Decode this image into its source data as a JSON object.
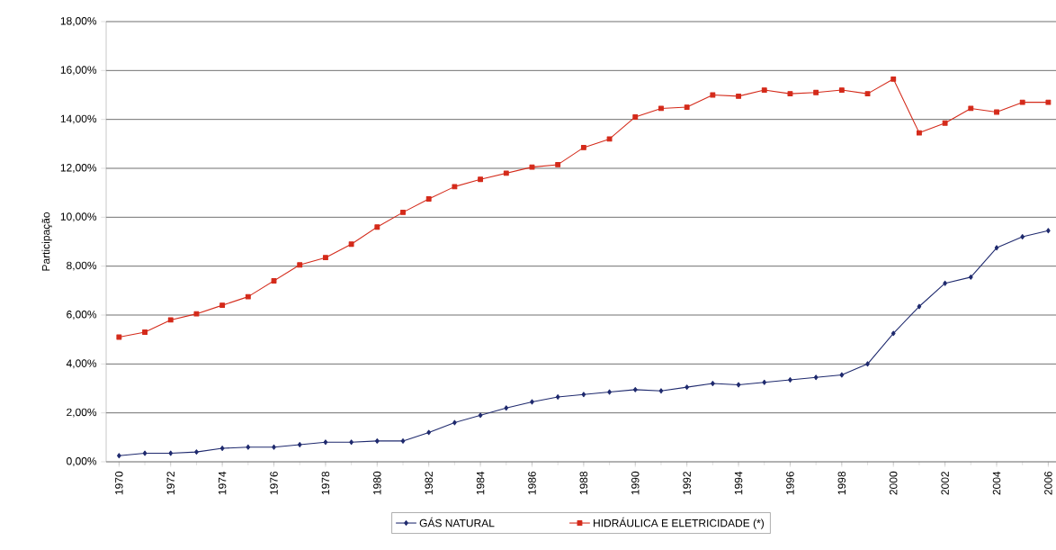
{
  "chart_data": {
    "type": "line",
    "ylabel": "Participação",
    "categories": [
      "1970",
      null,
      "1972",
      null,
      "1974",
      null,
      "1976",
      null,
      "1978",
      null,
      "1980",
      null,
      "1982",
      null,
      "1984",
      null,
      "1986",
      null,
      "1988",
      null,
      "1990",
      null,
      "1992",
      null,
      "1994",
      null,
      "1996",
      null,
      "1998",
      null,
      "2000",
      null,
      "2002",
      null,
      "2004",
      null,
      "2006"
    ],
    "series": [
      {
        "name": "GÁS NATURAL",
        "color": "#1f2a6e",
        "marker": "diamond",
        "values": [
          0.25,
          0.35,
          0.35,
          0.4,
          0.55,
          0.6,
          0.6,
          0.7,
          0.8,
          0.8,
          0.85,
          0.85,
          1.2,
          1.6,
          1.9,
          2.2,
          2.45,
          2.65,
          2.75,
          2.85,
          2.95,
          2.9,
          3.05,
          3.2,
          3.15,
          3.25,
          3.35,
          3.45,
          3.55,
          4.0,
          5.25,
          6.35,
          7.3,
          7.55,
          8.75,
          9.2,
          9.45
        ]
      },
      {
        "name": "HIDRÁULICA E ELETRICIDADE (*)",
        "color": "#d42a1a",
        "marker": "square",
        "values": [
          5.1,
          5.3,
          5.8,
          6.05,
          6.4,
          6.75,
          7.4,
          8.05,
          8.35,
          8.9,
          9.6,
          10.2,
          10.75,
          11.25,
          11.55,
          11.8,
          12.05,
          12.15,
          12.85,
          13.2,
          14.1,
          14.45,
          14.5,
          15.0,
          14.95,
          15.2,
          15.05,
          15.1,
          15.2,
          15.05,
          15.65,
          13.45,
          13.85,
          14.45,
          14.3,
          14.7,
          14.7
        ]
      }
    ],
    "ylim": [
      0,
      18
    ],
    "yticks": [
      {
        "value": 0,
        "label": "0,00%"
      },
      {
        "value": 2,
        "label": "2,00%"
      },
      {
        "value": 4,
        "label": "4,00%"
      },
      {
        "value": 6,
        "label": "6,00%"
      },
      {
        "value": 8,
        "label": "8,00%"
      },
      {
        "value": 10,
        "label": "10,00%"
      },
      {
        "value": 12,
        "label": "12,00%"
      },
      {
        "value": 14,
        "label": "14,00%"
      },
      {
        "value": 16,
        "label": "16,00%"
      },
      {
        "value": 18,
        "label": "18,00%"
      }
    ],
    "grid": "y",
    "legend": "bottom",
    "line_style": "solid"
  }
}
